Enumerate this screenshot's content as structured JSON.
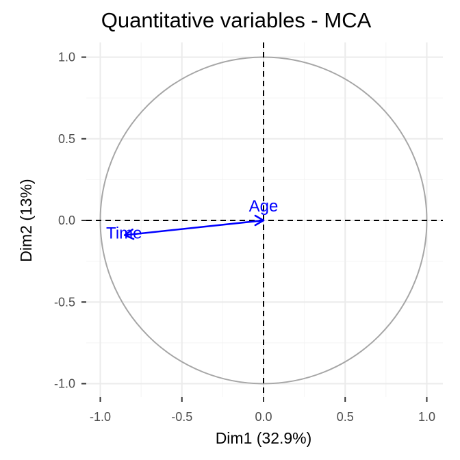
{
  "chart_data": {
    "type": "scatter",
    "subtype": "correlation-circle",
    "title": "Quantitative variables - MCA",
    "xlabel": "Dim1 (32.9%)",
    "ylabel": "Dim2 (13%)",
    "xlim": [
      -1.0,
      1.0
    ],
    "ylim": [
      -1.0,
      1.0
    ],
    "xticks": [
      -1.0,
      -0.5,
      0.0,
      0.5,
      1.0
    ],
    "yticks": [
      -1.0,
      -0.5,
      0.0,
      0.5,
      1.0
    ],
    "xtick_labels": [
      "-1.0",
      "-0.5",
      "0.0",
      "0.5",
      "1.0"
    ],
    "ytick_labels": [
      "-1.0",
      "-0.5",
      "0.0",
      "0.5",
      "1.0"
    ],
    "grid": true,
    "unit_circle": true,
    "reference_lines": {
      "x": 0.0,
      "y": 0.0,
      "style": "dashed"
    },
    "variables": [
      {
        "name": "Time",
        "x": -0.85,
        "y": -0.09
      },
      {
        "name": "Age",
        "x": 0.0,
        "y": 0.0
      }
    ]
  },
  "colors": {
    "arrow": "#0000ff",
    "circle": "#a6a6a6",
    "grid_major": "#ebebeb",
    "grid_minor": "#f4f4f4",
    "reference_line": "#000000",
    "tick_text": "#4d4d4d",
    "title_text": "#000000"
  }
}
